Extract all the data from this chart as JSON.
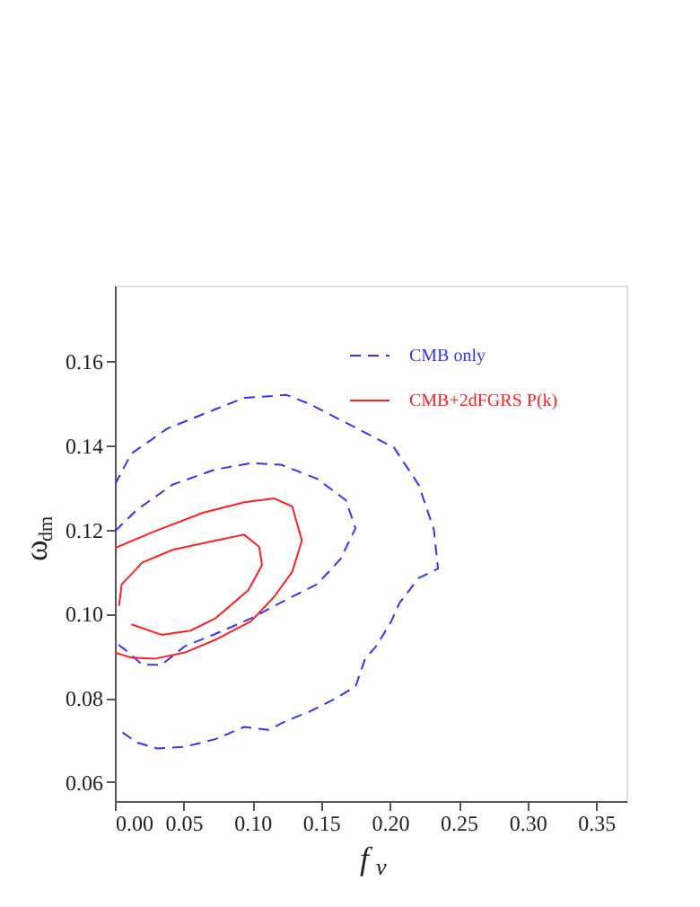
{
  "chart_data": {
    "type": "line",
    "xlabel": "f$_{ν}$",
    "ylabel": "ω$_{dm}$",
    "xlim": [
      0,
      0.372
    ],
    "ylim": [
      0.0555,
      0.178
    ],
    "xticks": [
      {
        "value": 0,
        "label": "0.00"
      },
      {
        "value": 0.05,
        "label": "0.05"
      },
      {
        "value": 0.1,
        "label": "0.10"
      },
      {
        "value": 0.15,
        "label": "0.15"
      },
      {
        "value": 0.2,
        "label": "0.20"
      },
      {
        "value": 0.25,
        "label": "0.25"
      },
      {
        "value": 0.3,
        "label": "0.30"
      },
      {
        "value": 0.35,
        "label": "0.35"
      }
    ],
    "yticks": [
      {
        "value": 0.06,
        "label": "0.06"
      },
      {
        "value": 0.08,
        "label": "0.08"
      },
      {
        "value": 0.1,
        "label": "0.10"
      },
      {
        "value": 0.12,
        "label": "0.12"
      },
      {
        "value": 0.14,
        "label": "0.14"
      },
      {
        "value": 0.16,
        "label": "0.16"
      }
    ],
    "grid": false,
    "legend": "top right",
    "marker": "none",
    "series": [
      {
        "name": "CMB only",
        "color": "#3333ff",
        "line_style": "dashed",
        "x": [
          0,
          0.0118,
          0.038,
          0.073,
          0.094,
          0.125,
          0.142,
          0.177,
          0.203,
          0.221,
          0.232,
          0.235,
          0.221,
          0.207,
          0.201,
          0.19,
          0.182,
          0.175,
          0.16,
          0.142,
          0.125,
          0.112,
          0.094,
          0.073,
          0.051,
          0.031,
          0.016,
          0.003
        ],
        "values": [
          0.1307,
          0.138,
          0.144,
          0.1486,
          0.1513,
          0.152,
          0.1498,
          0.1439,
          0.1395,
          0.1306,
          0.12,
          0.1107,
          0.1085,
          0.1026,
          0.0982,
          0.0923,
          0.0893,
          0.0827,
          0.0798,
          0.0768,
          0.0746,
          0.0724,
          0.0731,
          0.0702,
          0.0684,
          0.068,
          0.0694,
          0.0724
        ]
      },
      {
        "color": "#3333ff",
        "line_style": "dashed",
        "x": [
          0,
          0.016,
          0.042,
          0.073,
          0.099,
          0.121,
          0.147,
          0.168,
          0.175,
          0.164,
          0.147,
          0.125,
          0.099,
          0.073,
          0.051,
          0.034,
          0.02,
          0.007,
          0.001
        ],
        "values": [
          0.1196,
          0.1247,
          0.1307,
          0.1343,
          0.1358,
          0.1354,
          0.1321,
          0.127,
          0.1203,
          0.113,
          0.107,
          0.1034,
          0.0989,
          0.0952,
          0.0923,
          0.0879,
          0.0879,
          0.0916,
          0.093
        ]
      },
      {
        "name": "CMB+2dFGRS P(k)",
        "color": "#ff2020",
        "line_style": "solid",
        "x": [
          0,
          0.029,
          0.064,
          0.094,
          0.116,
          0.129,
          0.136,
          0.129,
          0.116,
          0.099,
          0.073,
          0.051,
          0.029,
          0.012,
          0
        ],
        "values": [
          0.1156,
          0.1196,
          0.124,
          0.1265,
          0.1274,
          0.1255,
          0.1174,
          0.11,
          0.1041,
          0.0982,
          0.0938,
          0.0908,
          0.0893,
          0.0896,
          0.0908
        ]
      },
      {
        "color": "#ff2020",
        "line_style": "solid",
        "x": [
          0.003,
          0.005,
          0.02,
          0.042,
          0.073,
          0.094,
          0.105,
          0.107,
          0.097,
          0.073,
          0.055,
          0.034,
          0.012
        ],
        "values": [
          0.1019,
          0.107,
          0.1122,
          0.1152,
          0.1174,
          0.1188,
          0.1159,
          0.1115,
          0.1056,
          0.0989,
          0.096,
          0.095,
          0.0975
        ]
      }
    ]
  }
}
